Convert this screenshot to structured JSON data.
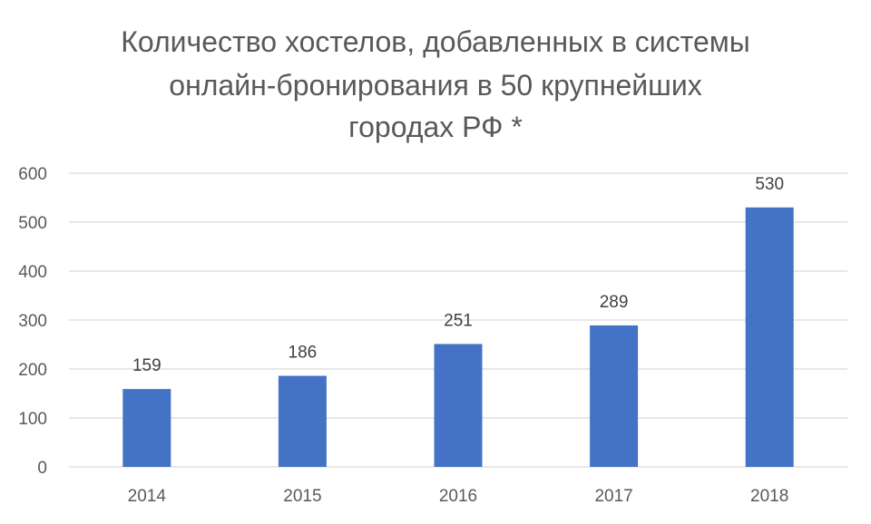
{
  "chart_data": {
    "type": "bar",
    "title_lines": [
      "Количество хостелов, добавленных в системы",
      "онлайн-бронирования в 50 крупнейших",
      "городах РФ *"
    ],
    "categories": [
      "2014",
      "2015",
      "2016",
      "2017",
      "2018"
    ],
    "values": [
      159,
      186,
      251,
      289,
      530
    ],
    "data_labels": [
      "159",
      "186",
      "251",
      "289",
      "530"
    ],
    "ylim": [
      0,
      600
    ],
    "y_ticks": [
      0,
      100,
      200,
      300,
      400,
      500,
      600
    ],
    "y_tick_labels": [
      "0",
      "100",
      "200",
      "300",
      "400",
      "500",
      "600"
    ],
    "grid": true,
    "bar_color": "#4472C4",
    "grid_color": "#D9D9D9"
  }
}
